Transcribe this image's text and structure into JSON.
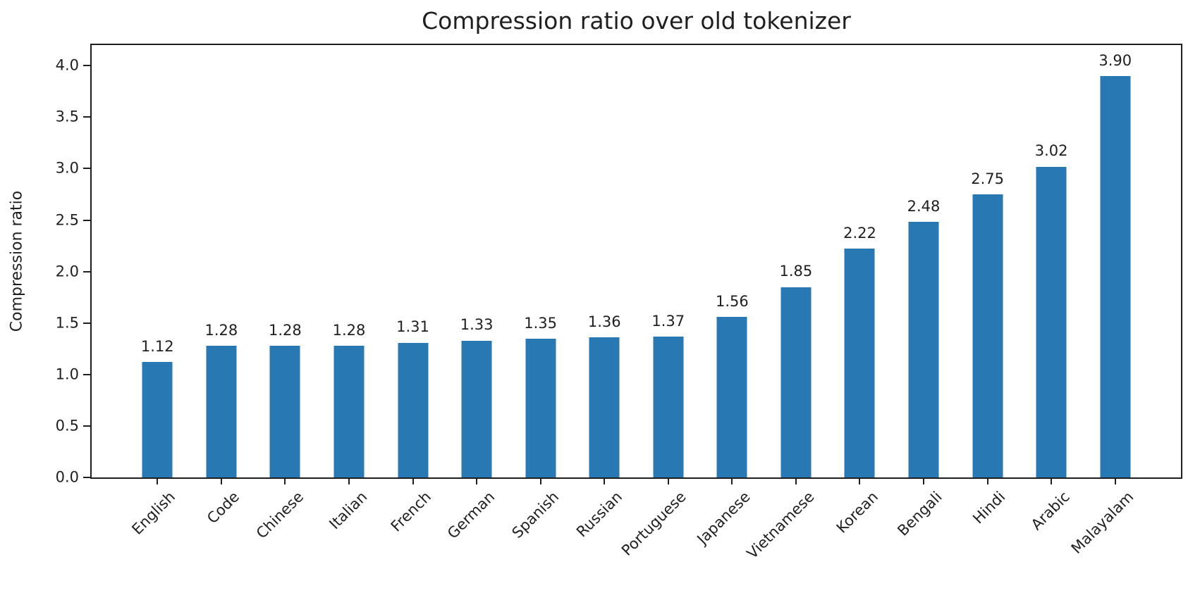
{
  "chart_data": {
    "type": "bar",
    "title": "Compression ratio over old tokenizer",
    "xlabel": "",
    "ylabel": "Compression ratio",
    "categories": [
      "English",
      "Code",
      "Chinese",
      "Italian",
      "French",
      "German",
      "Spanish",
      "Russian",
      "Portuguese",
      "Japanese",
      "Vietnamese",
      "Korean",
      "Bengali",
      "Hindi",
      "Arabic",
      "Malayalam"
    ],
    "values": [
      1.12,
      1.28,
      1.28,
      1.28,
      1.31,
      1.33,
      1.35,
      1.36,
      1.37,
      1.56,
      1.85,
      2.22,
      2.48,
      2.75,
      3.02,
      3.9
    ],
    "bar_labels": [
      "1.12",
      "1.28",
      "1.28",
      "1.28",
      "1.31",
      "1.33",
      "1.35",
      "1.36",
      "1.37",
      "1.56",
      "1.85",
      "2.22",
      "2.48",
      "2.75",
      "3.02",
      "3.90"
    ],
    "ytick_labels": [
      "0.0",
      "0.5",
      "1.0",
      "1.5",
      "2.0",
      "2.5",
      "3.0",
      "3.5",
      "4.0"
    ],
    "ylim": [
      0,
      4.2
    ],
    "bar_color": "#2878b4",
    "text_color": "#1f1f1f",
    "grid": false,
    "legend_position": "none",
    "xtick_rotation_deg": 45
  }
}
